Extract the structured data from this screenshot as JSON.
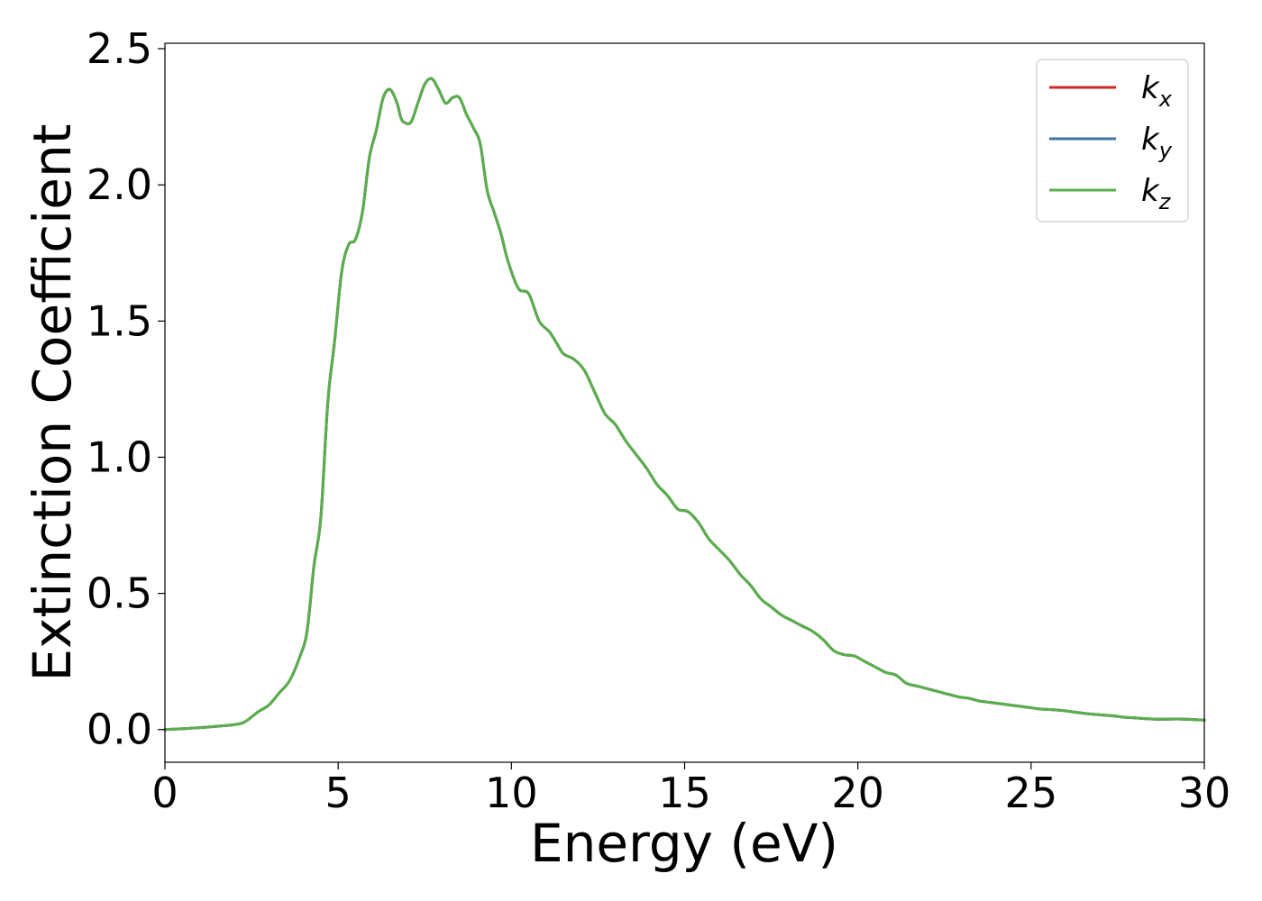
{
  "chart_data": {
    "type": "line",
    "title": "",
    "xlabel": "Energy (eV)",
    "ylabel": "Extinction Coefficient",
    "xlim": [
      0,
      30
    ],
    "ylim": [
      -0.12,
      2.52
    ],
    "x_ticks": [
      0,
      5,
      10,
      15,
      20,
      25,
      30
    ],
    "x_tick_labels": [
      "0",
      "5",
      "10",
      "15",
      "20",
      "25",
      "30"
    ],
    "y_ticks": [
      0.0,
      0.5,
      1.0,
      1.5,
      2.0,
      2.5
    ],
    "y_tick_labels": [
      "0.0",
      "0.5",
      "1.0",
      "1.5",
      "2.0",
      "2.5"
    ],
    "grid": false,
    "legend_position": "top-right",
    "x": [
      0,
      0.5,
      1,
      1.5,
      2,
      2.3,
      2.7,
      3.0,
      3.3,
      3.6,
      3.9,
      4.1,
      4.3,
      4.5,
      4.7,
      4.9,
      5.1,
      5.3,
      5.5,
      5.7,
      5.9,
      6.1,
      6.3,
      6.5,
      6.7,
      6.8,
      6.9,
      7.1,
      7.3,
      7.5,
      7.7,
      7.9,
      8.1,
      8.3,
      8.5,
      8.7,
      8.9,
      9.1,
      9.3,
      9.5,
      9.7,
      9.9,
      10.2,
      10.5,
      10.8,
      11.1,
      11.3,
      11.5,
      11.8,
      12.1,
      12.4,
      12.7,
      13.0,
      13.3,
      13.6,
      13.9,
      14.2,
      14.5,
      14.8,
      15.1,
      15.4,
      15.7,
      16.0,
      16.3,
      16.6,
      16.9,
      17.2,
      17.5,
      17.8,
      18.1,
      18.4,
      18.7,
      19.0,
      19.3,
      19.6,
      19.9,
      20.2,
      20.5,
      20.8,
      21.1,
      21.4,
      21.7,
      22.0,
      22.3,
      22.6,
      22.9,
      23.2,
      23.5,
      23.8,
      24.1,
      24.4,
      24.7,
      25.0,
      25.3,
      25.6,
      25.9,
      26.2,
      26.5,
      26.8,
      27.1,
      27.4,
      27.7,
      28.0,
      28.3,
      28.6,
      28.9,
      29.2,
      29.5,
      29.8,
      30.0
    ],
    "series": [
      {
        "name": "k_x",
        "color": "#d62728",
        "values": [
          0.0,
          0.003,
          0.007,
          0.012,
          0.018,
          0.028,
          0.066,
          0.09,
          0.135,
          0.18,
          0.27,
          0.36,
          0.6,
          0.78,
          1.2,
          1.43,
          1.68,
          1.78,
          1.8,
          1.9,
          2.1,
          2.2,
          2.32,
          2.35,
          2.3,
          2.25,
          2.23,
          2.23,
          2.3,
          2.37,
          2.39,
          2.35,
          2.3,
          2.32,
          2.32,
          2.26,
          2.21,
          2.15,
          1.98,
          1.9,
          1.82,
          1.72,
          1.62,
          1.6,
          1.5,
          1.46,
          1.42,
          1.38,
          1.36,
          1.32,
          1.24,
          1.16,
          1.12,
          1.06,
          1.01,
          0.96,
          0.9,
          0.86,
          0.81,
          0.8,
          0.76,
          0.7,
          0.66,
          0.62,
          0.57,
          0.53,
          0.48,
          0.45,
          0.42,
          0.4,
          0.38,
          0.36,
          0.33,
          0.29,
          0.275,
          0.27,
          0.25,
          0.23,
          0.21,
          0.2,
          0.17,
          0.16,
          0.15,
          0.14,
          0.13,
          0.12,
          0.115,
          0.105,
          0.1,
          0.095,
          0.09,
          0.085,
          0.08,
          0.075,
          0.073,
          0.07,
          0.065,
          0.06,
          0.056,
          0.053,
          0.05,
          0.045,
          0.043,
          0.04,
          0.038,
          0.038,
          0.039,
          0.038,
          0.036,
          0.035
        ]
      },
      {
        "name": "k_y",
        "color": "#3b74a8",
        "values": [
          0.0,
          0.003,
          0.007,
          0.012,
          0.018,
          0.028,
          0.066,
          0.09,
          0.135,
          0.18,
          0.27,
          0.36,
          0.6,
          0.78,
          1.2,
          1.43,
          1.68,
          1.78,
          1.8,
          1.9,
          2.1,
          2.2,
          2.32,
          2.35,
          2.3,
          2.25,
          2.23,
          2.23,
          2.3,
          2.37,
          2.39,
          2.35,
          2.3,
          2.32,
          2.32,
          2.26,
          2.21,
          2.15,
          1.98,
          1.9,
          1.82,
          1.72,
          1.62,
          1.6,
          1.5,
          1.46,
          1.42,
          1.38,
          1.36,
          1.32,
          1.24,
          1.16,
          1.12,
          1.06,
          1.01,
          0.96,
          0.9,
          0.86,
          0.81,
          0.8,
          0.76,
          0.7,
          0.66,
          0.62,
          0.57,
          0.53,
          0.48,
          0.45,
          0.42,
          0.4,
          0.38,
          0.36,
          0.33,
          0.29,
          0.275,
          0.27,
          0.25,
          0.23,
          0.21,
          0.2,
          0.17,
          0.16,
          0.15,
          0.14,
          0.13,
          0.12,
          0.115,
          0.105,
          0.1,
          0.095,
          0.09,
          0.085,
          0.08,
          0.075,
          0.073,
          0.07,
          0.065,
          0.06,
          0.056,
          0.053,
          0.05,
          0.045,
          0.043,
          0.04,
          0.038,
          0.038,
          0.039,
          0.038,
          0.036,
          0.035
        ]
      },
      {
        "name": "k_z",
        "color": "#5aaf4c",
        "values": [
          0.0,
          0.003,
          0.007,
          0.012,
          0.018,
          0.028,
          0.066,
          0.09,
          0.135,
          0.18,
          0.27,
          0.36,
          0.6,
          0.78,
          1.2,
          1.43,
          1.68,
          1.78,
          1.8,
          1.9,
          2.1,
          2.2,
          2.32,
          2.35,
          2.3,
          2.25,
          2.23,
          2.23,
          2.3,
          2.37,
          2.39,
          2.35,
          2.3,
          2.32,
          2.32,
          2.26,
          2.21,
          2.15,
          1.98,
          1.9,
          1.82,
          1.72,
          1.62,
          1.6,
          1.5,
          1.46,
          1.42,
          1.38,
          1.36,
          1.32,
          1.24,
          1.16,
          1.12,
          1.06,
          1.01,
          0.96,
          0.9,
          0.86,
          0.81,
          0.8,
          0.76,
          0.7,
          0.66,
          0.62,
          0.57,
          0.53,
          0.48,
          0.45,
          0.42,
          0.4,
          0.38,
          0.36,
          0.33,
          0.29,
          0.275,
          0.27,
          0.25,
          0.23,
          0.21,
          0.2,
          0.17,
          0.16,
          0.15,
          0.14,
          0.13,
          0.12,
          0.115,
          0.105,
          0.1,
          0.095,
          0.09,
          0.085,
          0.08,
          0.075,
          0.073,
          0.07,
          0.065,
          0.06,
          0.056,
          0.053,
          0.05,
          0.045,
          0.043,
          0.04,
          0.038,
          0.038,
          0.039,
          0.038,
          0.036,
          0.035
        ]
      }
    ],
    "legend": [
      {
        "base": "k",
        "sub": "x",
        "color": "#d62728"
      },
      {
        "base": "k",
        "sub": "y",
        "color": "#3b74a8"
      },
      {
        "base": "k",
        "sub": "z",
        "color": "#5aaf4c"
      }
    ]
  }
}
